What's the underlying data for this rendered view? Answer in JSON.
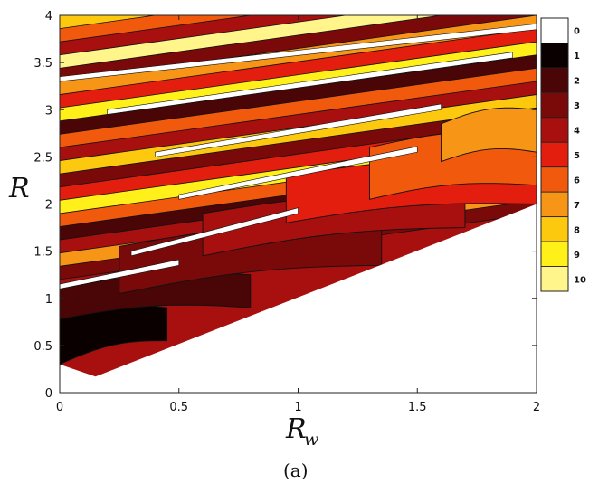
{
  "chart_data": {
    "type": "heatmap",
    "xlabel": {
      "main": "R",
      "sub": "w"
    },
    "ylabel": "R",
    "xlim": [
      0,
      2
    ],
    "ylim": [
      0,
      4
    ],
    "xticks": [
      0,
      0.5,
      1,
      1.5,
      2
    ],
    "xtick_labels": [
      "0",
      "0.5",
      "1",
      "1.5",
      "2"
    ],
    "yticks": [
      0,
      0.5,
      1,
      1.5,
      2,
      2.5,
      3,
      3.5,
      4
    ],
    "ytick_labels": [
      "0",
      "0.5",
      "1",
      "1.5",
      "2",
      "2.5",
      "3",
      "3.5",
      "4"
    ],
    "colorbar": {
      "levels": [
        "0",
        "1",
        "2",
        "3",
        "4",
        "5",
        "6",
        "7",
        "8",
        "9",
        "10"
      ],
      "colors": [
        "#ffffff",
        "#0a0000",
        "#4a0606",
        "#7a0a0a",
        "#a80f0f",
        "#e31e0e",
        "#f15a0c",
        "#f79616",
        "#fcc90e",
        "#fff019",
        "#fff58a"
      ]
    },
    "boundary": {
      "description": "Colored region lies above a lower boundary line; region below is level 0 (white)",
      "lower_boundary": [
        [
          0,
          0.3
        ],
        [
          0.15,
          0.17
        ],
        [
          2,
          2.0
        ]
      ]
    },
    "bands": [
      {
        "level": 1,
        "x": [
          0,
          0.45
        ],
        "y_bottom": [
          0.3,
          0.55
        ],
        "y_top": [
          0.78,
          0.9
        ]
      },
      {
        "level": 2,
        "x": [
          0,
          0.8
        ],
        "y_bottom": [
          0.78,
          0.9
        ],
        "y_top": [
          1.1,
          1.25
        ]
      },
      {
        "level": 3,
        "x": [
          0.25,
          1.35
        ],
        "y_bottom": [
          1.05,
          1.35
        ],
        "y_top": [
          1.55,
          1.8
        ]
      },
      {
        "level": 4,
        "x": [
          0.6,
          1.7
        ],
        "y_bottom": [
          1.45,
          1.75
        ],
        "y_top": [
          1.9,
          2.1
        ]
      },
      {
        "level": 5,
        "x": [
          0.95,
          2
        ],
        "y_bottom": [
          1.8,
          2.0
        ],
        "y_top": [
          2.3,
          2.45
        ]
      },
      {
        "level": 6,
        "x": [
          1.3,
          2
        ],
        "y_bottom": [
          2.05,
          2.2
        ],
        "y_top": [
          2.6,
          2.75
        ]
      },
      {
        "level": 7,
        "x": [
          1.6,
          2
        ],
        "y_bottom": [
          2.45,
          2.55
        ],
        "y_top": [
          2.85,
          3.0
        ]
      }
    ],
    "caption": "(a)"
  }
}
